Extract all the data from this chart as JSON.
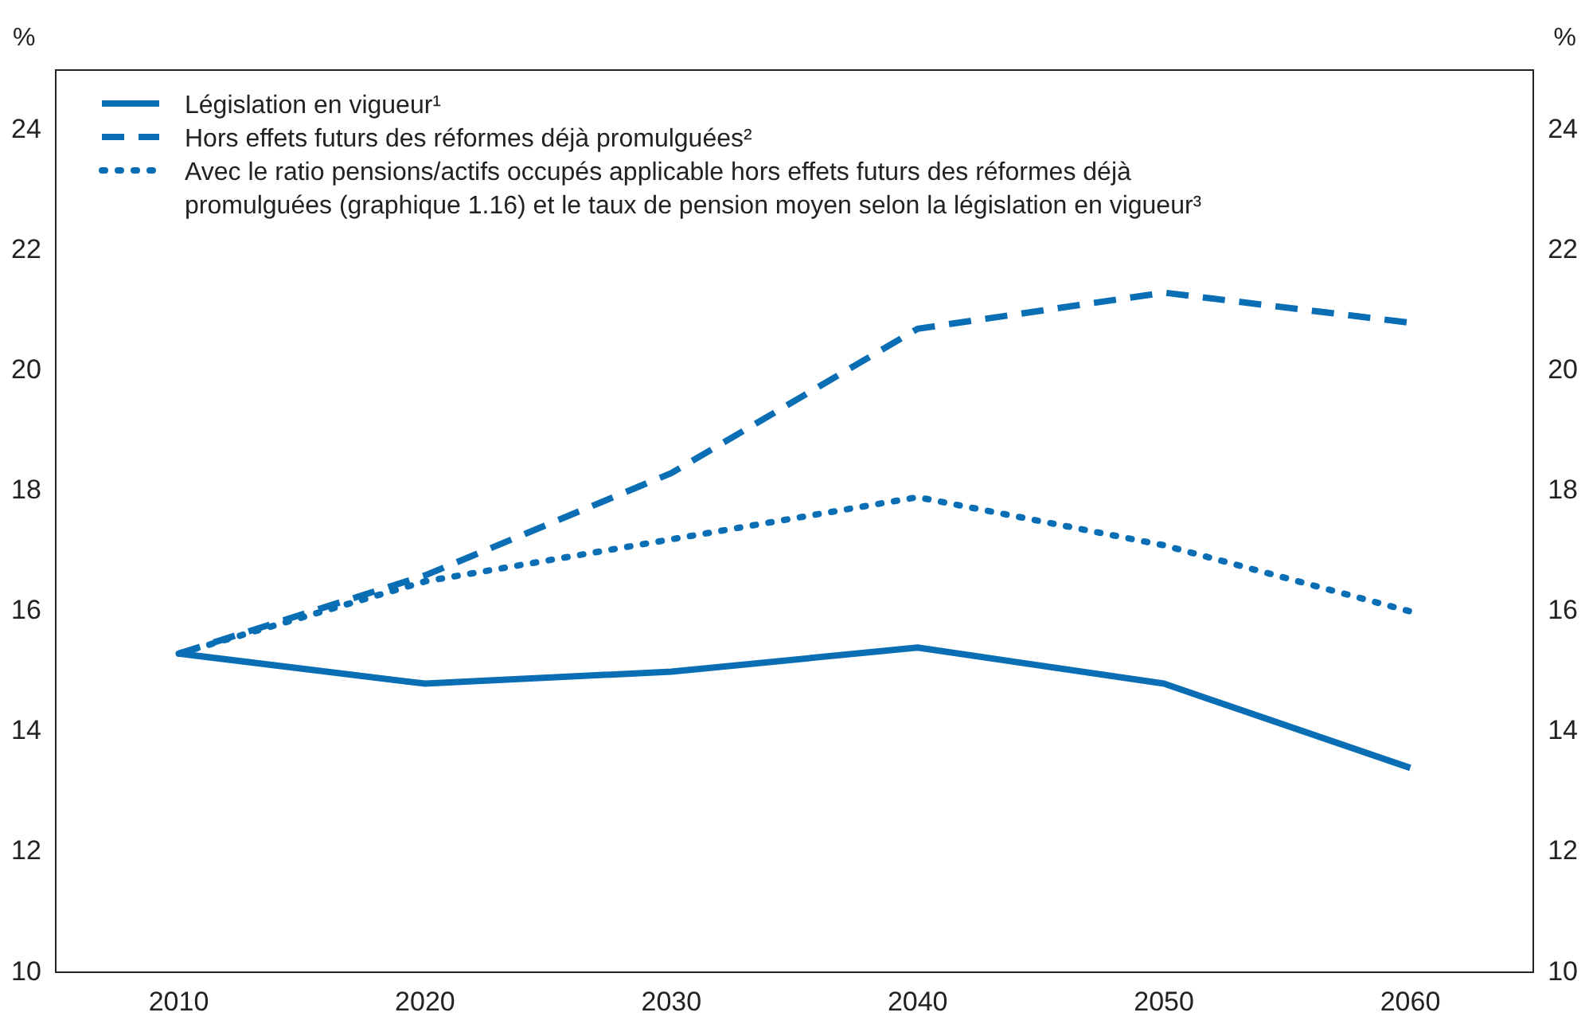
{
  "chart_data": {
    "type": "line",
    "ylabel": "%",
    "y2label": "%",
    "x": [
      2010,
      2020,
      2030,
      2040,
      2050,
      2060
    ],
    "xlim": [
      2005,
      2065
    ],
    "xticks": [
      2010,
      2020,
      2030,
      2040,
      2050,
      2060
    ],
    "ylim": [
      10,
      25
    ],
    "yticks": [
      10,
      12,
      14,
      16,
      18,
      20,
      22,
      24
    ],
    "y2lim": [
      10,
      25
    ],
    "y2ticks": [
      10,
      12,
      14,
      16,
      18,
      20,
      22,
      24
    ],
    "grid": false,
    "legend": "top left",
    "marker": "none",
    "series": [
      {
        "name": "Législation en vigueur¹",
        "color": "#0a6eb4",
        "line_style": "solid",
        "values": [
          15.3,
          14.8,
          15.0,
          15.4,
          14.8,
          13.4
        ]
      },
      {
        "name": "Hors effets futurs des réformes déjà promulguées²",
        "color": "#0a6eb4",
        "line_style": "dashed",
        "values": [
          15.3,
          16.6,
          18.3,
          20.7,
          21.3,
          20.8
        ]
      },
      {
        "name": "Avec le ratio pensions/actifs occupés applicable hors effets futurs des réformes déjà promulguées (graphique 1.16) et le taux de pension moyen selon la législation en vigueur³",
        "color": "#0a6eb4",
        "line_style": "dotted",
        "values": [
          15.3,
          16.5,
          17.2,
          17.9,
          17.1,
          16.0
        ]
      }
    ]
  }
}
